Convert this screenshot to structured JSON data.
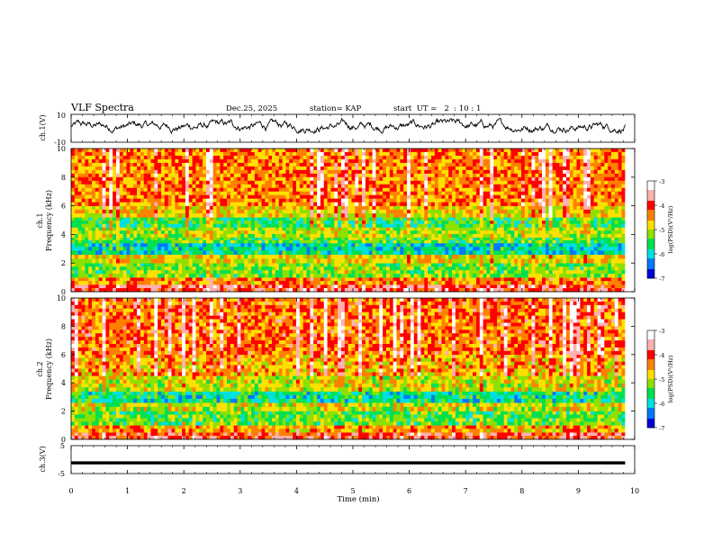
{
  "header": {
    "title": "VLF Spectra",
    "date": "Dec.25, 2025",
    "station": "station= KAP",
    "start": "start  UT =   2  : 10 : 1"
  },
  "colors": {
    "ink": "#000000",
    "background": "#ffffff",
    "colormap": [
      "#000000",
      "#0000d8",
      "#0078ff",
      "#00e0e0",
      "#00e050",
      "#8ee000",
      "#ffe000",
      "#ff8000",
      "#ff0000",
      "#ffb0b0",
      "#ffffff"
    ]
  },
  "chart_data": [
    {
      "type": "line",
      "name": "ch1-waveform",
      "ylabel": "ch.1(V)",
      "ylim": [
        -10,
        10
      ],
      "ytick_labels": [
        "10",
        "-10"
      ],
      "xlim": [
        0,
        10
      ],
      "x_extent_min": 9.83,
      "envelope": {
        "min": -3.5,
        "max": 7.0,
        "mean": 1.5
      }
    },
    {
      "type": "heatmap",
      "name": "ch1-spectrogram",
      "ylabel_channel": "ch.1",
      "ylabel": "Frequency (kHz)",
      "ylim": [
        0,
        10
      ],
      "ytick_labels": [
        "0",
        "2",
        "4",
        "6",
        "8",
        "10"
      ],
      "xlim": [
        0,
        10
      ],
      "x_extent_min": 9.83,
      "colorbar": {
        "label": "log(PSD)(V²/Hz)",
        "range": [
          -7,
          -3
        ],
        "tick_labels": [
          "-3",
          "-4",
          "-5",
          "-6",
          "-7"
        ]
      },
      "bands": [
        {
          "f": [
            0.0,
            0.5
          ],
          "level": -3.9
        },
        {
          "f": [
            0.5,
            1.0
          ],
          "level": -4.5
        },
        {
          "f": [
            1.0,
            2.0
          ],
          "level": -5.3
        },
        {
          "f": [
            2.0,
            2.6
          ],
          "level": -4.9
        },
        {
          "f": [
            2.6,
            3.4
          ],
          "level": -5.9
        },
        {
          "f": [
            3.4,
            3.8
          ],
          "level": -5.4
        },
        {
          "f": [
            3.8,
            4.5
          ],
          "level": -5.1
        },
        {
          "f": [
            4.5,
            5.2
          ],
          "level": -5.6
        },
        {
          "f": [
            5.2,
            6.0
          ],
          "level": -4.8
        },
        {
          "f": [
            6.0,
            10.0
          ],
          "level": -4.4
        }
      ]
    },
    {
      "type": "heatmap",
      "name": "ch2-spectrogram",
      "ylabel_channel": "ch.2",
      "ylabel": "Frequency (kHz)",
      "ylim": [
        0,
        10
      ],
      "ytick_labels": [
        "0",
        "2",
        "4",
        "6",
        "8",
        "10"
      ],
      "xlim": [
        0,
        10
      ],
      "x_extent_min": 9.83,
      "colorbar": {
        "label": "log(PSD)(V²/Hz)",
        "range": [
          -7,
          -3
        ],
        "tick_labels": [
          "-3",
          "-4",
          "-5",
          "-6",
          "-7"
        ]
      },
      "bands": [
        {
          "f": [
            0.0,
            0.5
          ],
          "level": -4.0
        },
        {
          "f": [
            0.5,
            1.0
          ],
          "level": -4.6
        },
        {
          "f": [
            1.0,
            2.0
          ],
          "level": -5.4
        },
        {
          "f": [
            2.0,
            2.6
          ],
          "level": -5.0
        },
        {
          "f": [
            2.6,
            3.4
          ],
          "level": -5.8
        },
        {
          "f": [
            3.4,
            4.5
          ],
          "level": -5.0
        },
        {
          "f": [
            4.5,
            6.0
          ],
          "level": -4.6
        },
        {
          "f": [
            6.0,
            10.0
          ],
          "level": -4.3
        }
      ]
    },
    {
      "type": "line",
      "name": "ch3-waveform",
      "ylabel": "ch.3(V)",
      "ylim": [
        -5,
        5
      ],
      "ytick_labels": [
        "5",
        "-5"
      ],
      "xlim": [
        0,
        10
      ],
      "x_extent_min": 9.83,
      "xlabel": "Time (min)",
      "xtick_labels": [
        "0",
        "1",
        "2",
        "3",
        "4",
        "5",
        "6",
        "7",
        "8",
        "9",
        "10"
      ],
      "band": {
        "min": -1.7,
        "max": -0.6
      }
    }
  ]
}
